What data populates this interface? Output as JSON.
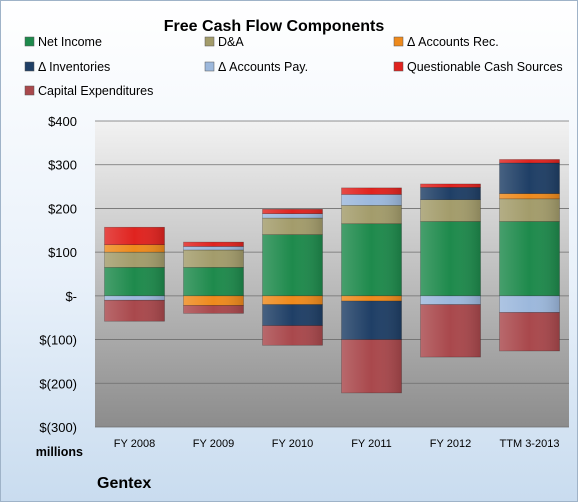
{
  "chart_data": {
    "type": "bar",
    "stacked": true,
    "title": "Free Cash Flow Components",
    "units_label": "millions",
    "company": "Gentex",
    "categories": [
      "FY 2008",
      "FY 2009",
      "FY 2010",
      "FY 2011",
      "FY 2012",
      "TTM 3-2013"
    ],
    "ylim": [
      -300,
      400
    ],
    "yticks": [
      400,
      300,
      200,
      100,
      0,
      -100,
      -200,
      -300
    ],
    "ytick_labels": [
      "$400",
      "$300",
      "$200",
      "$100",
      "$-",
      "$(100)",
      "$(200)",
      "$(300)"
    ],
    "grid": true,
    "legend_position": "top",
    "series": [
      {
        "name": "Net Income",
        "color": "#1e8a4c",
        "values": [
          65,
          65,
          140,
          165,
          170,
          170
        ]
      },
      {
        "name": "D&A",
        "color": "#a39c6b",
        "values": [
          35,
          40,
          38,
          42,
          50,
          52
        ]
      },
      {
        "name": "Δ Accounts Rec.",
        "color": "#ee8a1c",
        "values": [
          17,
          -22,
          -20,
          -12,
          0,
          12
        ]
      },
      {
        "name": "Δ Inventories",
        "color": "#1f3f66",
        "values": [
          0,
          0,
          -48,
          -88,
          28,
          70
        ]
      },
      {
        "name": "Δ Accounts Pay.",
        "color": "#9cb8dc",
        "values": [
          -10,
          8,
          10,
          25,
          -20,
          -38
        ]
      },
      {
        "name": "Questionable Cash Sources",
        "color": "#e0231f",
        "values": [
          40,
          10,
          10,
          15,
          8,
          8
        ]
      },
      {
        "name": "Capital Expenditures",
        "color": "#a9484c",
        "values": [
          -48,
          -18,
          -45,
          -122,
          -120,
          -88
        ]
      }
    ]
  }
}
